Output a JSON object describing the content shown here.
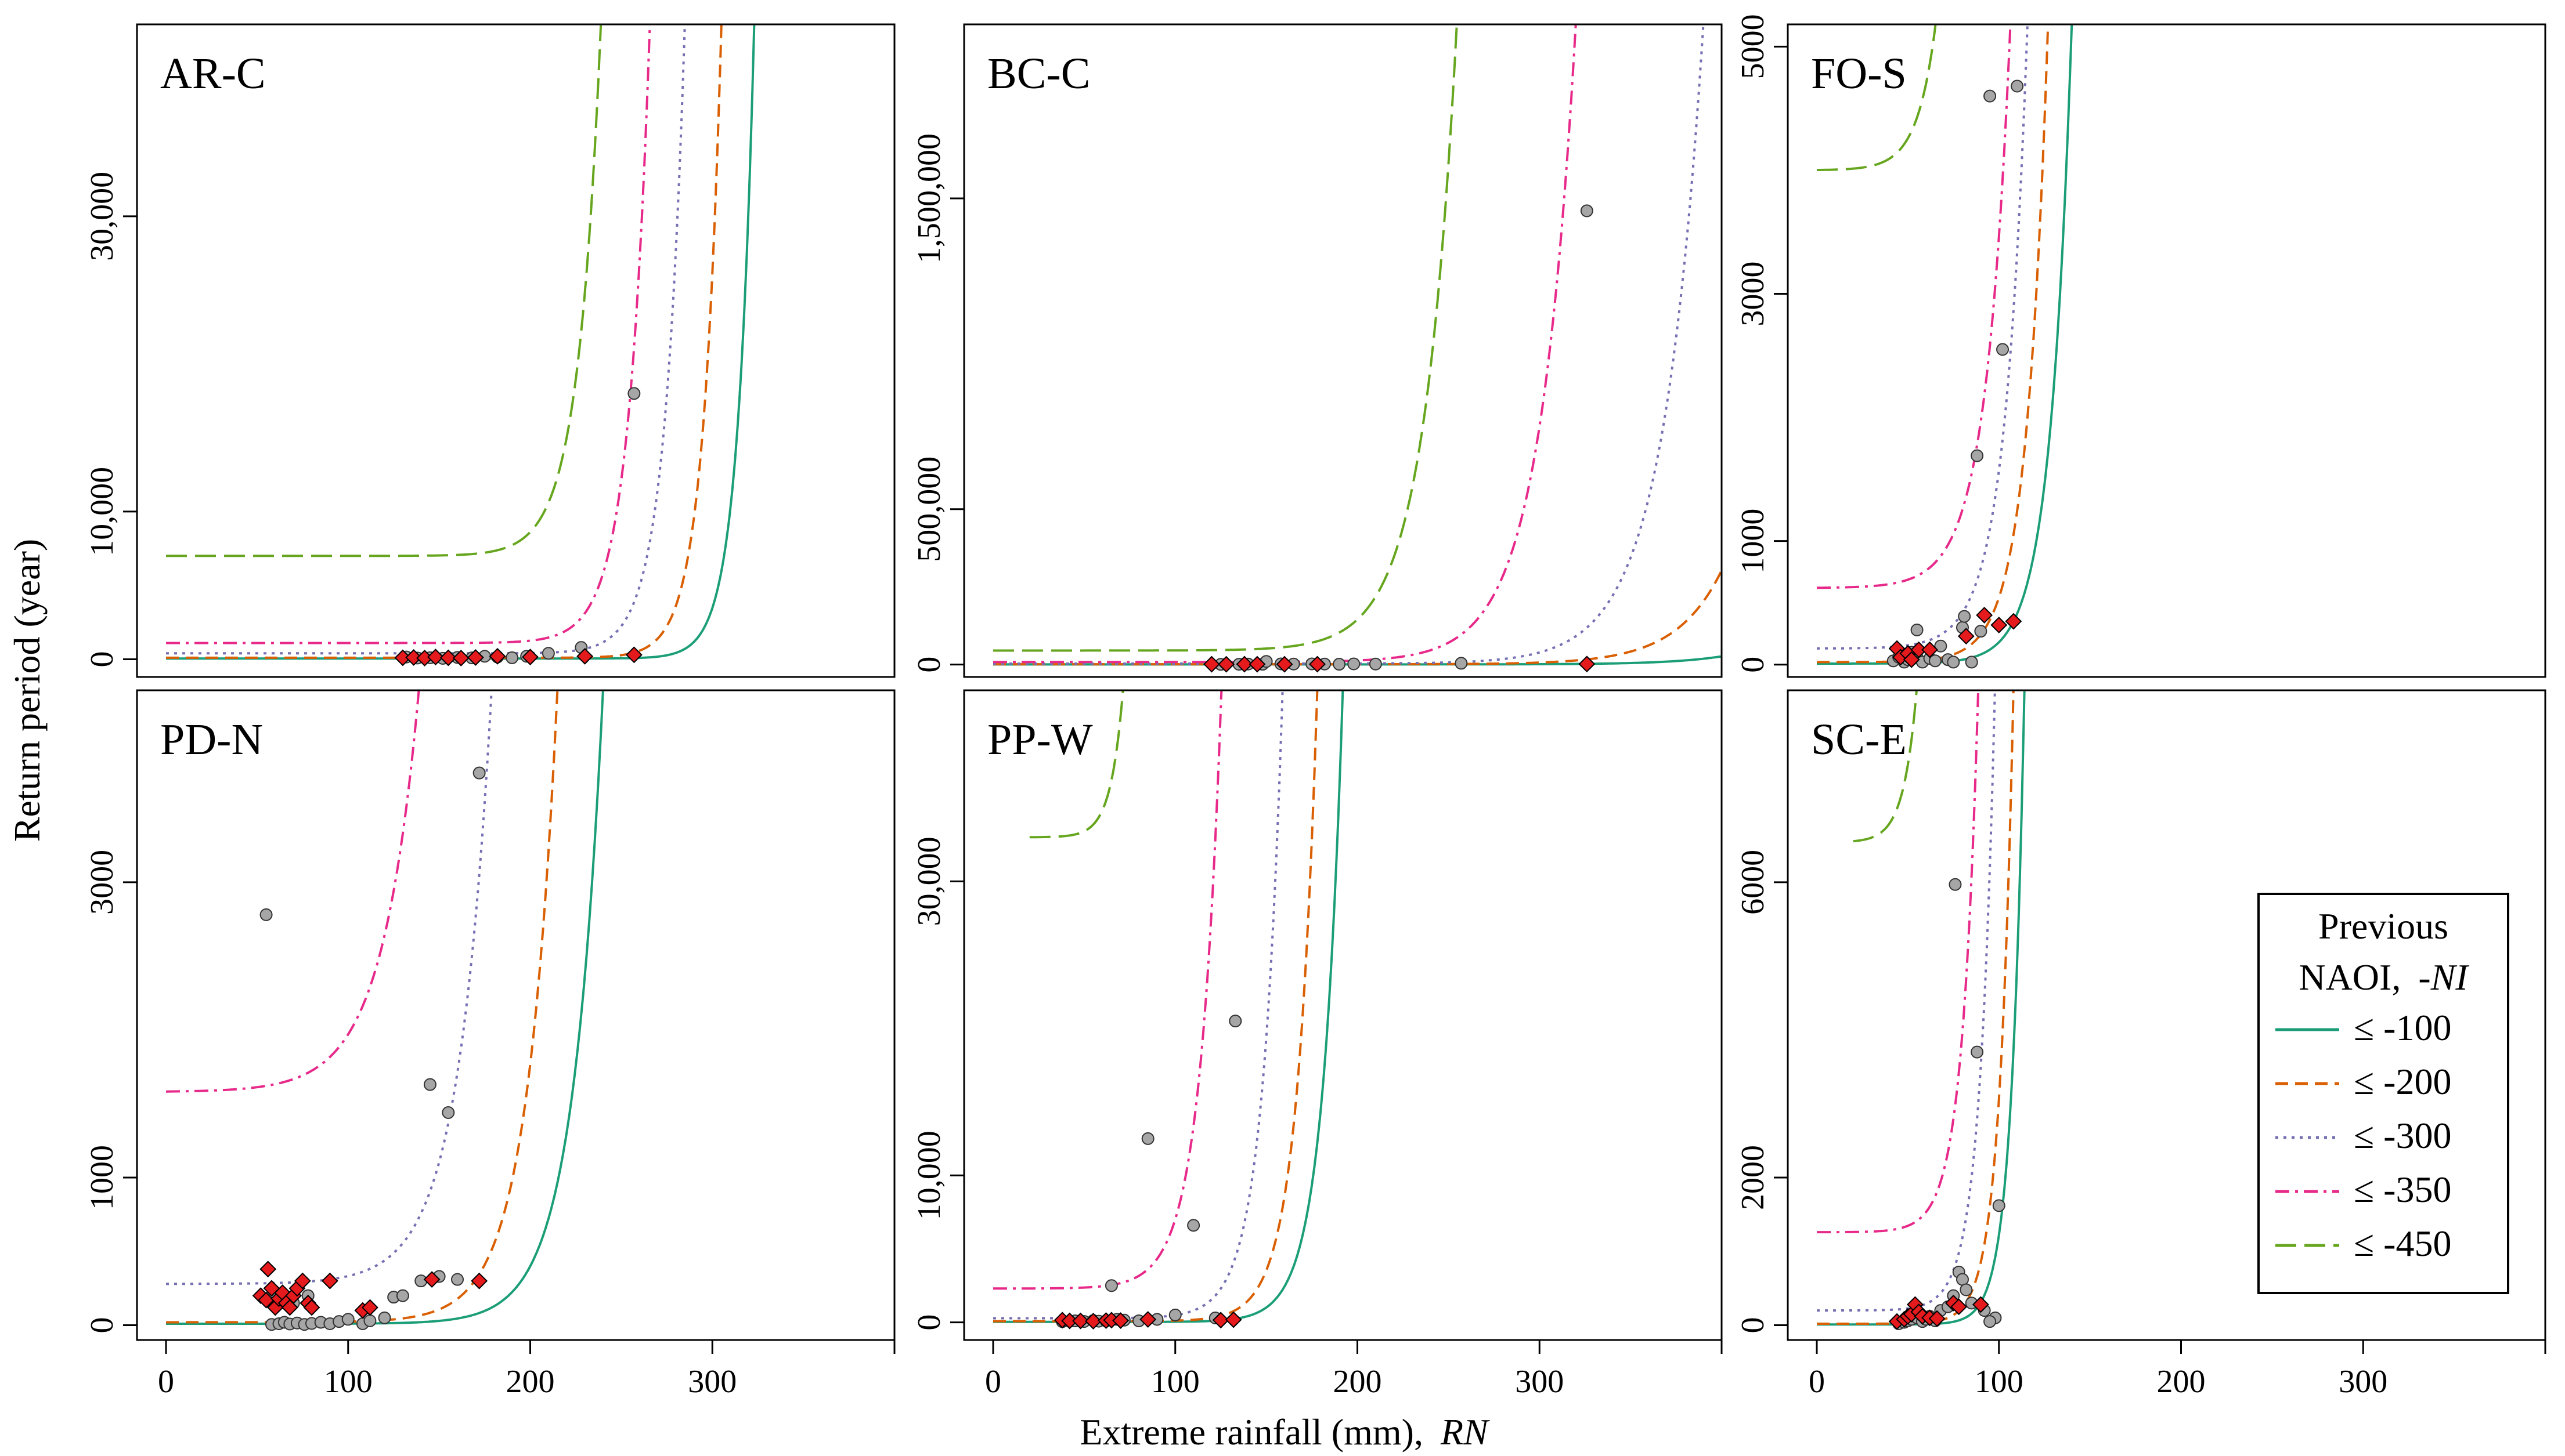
{
  "figure": {
    "xlabel": "Extreme rainfall (mm),",
    "xlabel_italic": "RN",
    "ylabel": "Return period (year)"
  },
  "colors": {
    "le_100": "#1b9e77",
    "le_200": "#d95f02",
    "le_300": "#7570b3",
    "le_350": "#e7298a",
    "le_450": "#66a61e",
    "point_gray": "#a6a6a6",
    "point_red": "#e41a1c"
  },
  "legend": {
    "title_line1": "Previous",
    "title_line2": "NAOI,",
    "title_italic": "-NI",
    "entries": [
      {
        "label": "≤ -100",
        "color": "#1b9e77",
        "dash": "solid"
      },
      {
        "label": "≤ -200",
        "color": "#d95f02",
        "dash": "dashed"
      },
      {
        "label": "≤ -300",
        "color": "#7570b3",
        "dash": "dotted"
      },
      {
        "label": "≤ -350",
        "color": "#e7298a",
        "dash": "dotdash"
      },
      {
        "label": "≤ -450",
        "color": "#66a61e",
        "dash": "longdash"
      }
    ]
  },
  "chart_data": [
    {
      "type": "line",
      "title": "AR-C",
      "xlim": [
        0,
        400
      ],
      "ylim": [
        -1200,
        43000
      ],
      "xticks": [
        0,
        100,
        200,
        300
      ],
      "xtick_labels": [
        "0",
        "100",
        "200",
        "300"
      ],
      "yticks": [
        0,
        10000,
        30000
      ],
      "ytick_labels": [
        "0",
        "10,000",
        "30,000"
      ],
      "series": [
        {
          "name": "≤ -100",
          "base": 50,
          "k": 0.11,
          "x0": 323
        },
        {
          "name": "≤ -200",
          "base": 100,
          "k": 0.1,
          "x0": 305
        },
        {
          "name": "≤ -300",
          "base": 400,
          "k": 0.09,
          "x0": 285
        },
        {
          "name": "≤ -350",
          "base": 1100,
          "k": 0.085,
          "x0": 266
        },
        {
          "name": "≤ -450",
          "base": 7000,
          "k": 0.08,
          "x0": 241
        }
      ],
      "points_gray": [
        [
          132,
          150
        ],
        [
          138,
          80
        ],
        [
          145,
          100
        ],
        [
          152,
          60
        ],
        [
          160,
          120
        ],
        [
          168,
          90
        ],
        [
          175,
          200
        ],
        [
          182,
          150
        ],
        [
          190,
          100
        ],
        [
          198,
          200
        ],
        [
          210,
          400
        ],
        [
          228,
          800
        ],
        [
          257,
          18000
        ]
      ],
      "points_red": [
        [
          130,
          100
        ],
        [
          136,
          120
        ],
        [
          142,
          80
        ],
        [
          148,
          150
        ],
        [
          155,
          100
        ],
        [
          162,
          80
        ],
        [
          170,
          120
        ],
        [
          182,
          200
        ],
        [
          200,
          150
        ],
        [
          230,
          200
        ],
        [
          257,
          300
        ]
      ]
    },
    {
      "type": "line",
      "title": "BC-C",
      "xlim": [
        0,
        400
      ],
      "ylim": [
        -40000,
        2060000
      ],
      "xticks": [
        0,
        100,
        200,
        300
      ],
      "xtick_labels": [
        "0",
        "100",
        "200",
        "300"
      ],
      "yticks": [
        0,
        500000,
        1500000
      ],
      "ytick_labels": [
        "0",
        "500,000",
        "1,500,000"
      ],
      "series": [
        {
          "name": "≤ -100",
          "base": 300,
          "k": 0.035,
          "x0": 525
        },
        {
          "name": "≤ -200",
          "base": 800,
          "k": 0.04,
          "x0": 448
        },
        {
          "name": "≤ -300",
          "base": 3000,
          "k": 0.045,
          "x0": 390
        },
        {
          "name": "≤ -350",
          "base": 8000,
          "k": 0.05,
          "x0": 320
        },
        {
          "name": "≤ -450",
          "base": 45000,
          "k": 0.055,
          "x0": 255
        }
      ],
      "points_gray": [
        [
          125,
          500
        ],
        [
          135,
          800
        ],
        [
          140,
          1500
        ],
        [
          148,
          1000
        ],
        [
          150,
          10000
        ],
        [
          158,
          2000
        ],
        [
          165,
          1500
        ],
        [
          175,
          2000
        ],
        [
          182,
          1500
        ],
        [
          190,
          1000
        ],
        [
          198,
          2000
        ],
        [
          210,
          1500
        ],
        [
          257,
          4000
        ],
        [
          326,
          1460000
        ]
      ],
      "points_red": [
        [
          120,
          1000
        ],
        [
          128,
          800
        ],
        [
          138,
          1200
        ],
        [
          145,
          1000
        ],
        [
          160,
          900
        ],
        [
          178,
          1100
        ],
        [
          326,
          1500
        ]
      ]
    },
    {
      "type": "line",
      "title": "FO-S",
      "xlim": [
        0,
        400
      ],
      "ylim": [
        -100,
        5180
      ],
      "xticks": [
        0,
        100,
        200,
        300
      ],
      "xtick_labels": [
        "0",
        "100",
        "200",
        "300"
      ],
      "yticks": [
        0,
        1000,
        3000,
        5000
      ],
      "ytick_labels": [
        "0",
        "1000",
        "3000",
        "5000"
      ],
      "series": [
        {
          "name": "≤ -100",
          "base": 8,
          "k": 0.085,
          "x0": 140
        },
        {
          "name": "≤ -200",
          "base": 20,
          "k": 0.085,
          "x0": 127
        },
        {
          "name": "≤ -300",
          "base": 130,
          "k": 0.08,
          "x0": 116
        },
        {
          "name": "≤ -350",
          "base": 620,
          "k": 0.075,
          "x0": 108
        },
        {
          "name": "≤ -450",
          "base": 4000,
          "k": 0.1,
          "x0": 80
        }
      ],
      "points_gray": [
        [
          42,
          30
        ],
        [
          45,
          60
        ],
        [
          48,
          20
        ],
        [
          50,
          40
        ],
        [
          52,
          100
        ],
        [
          55,
          60
        ],
        [
          58,
          20
        ],
        [
          62,
          50
        ],
        [
          65,
          30
        ],
        [
          68,
          150
        ],
        [
          72,
          40
        ],
        [
          75,
          20
        ],
        [
          80,
          300
        ],
        [
          85,
          20
        ],
        [
          48,
          80
        ],
        [
          55,
          280
        ],
        [
          81,
          390
        ],
        [
          90,
          270
        ],
        [
          88,
          1690
        ],
        [
          95,
          4600
        ],
        [
          102,
          2550
        ],
        [
          110,
          4680
        ]
      ],
      "points_red": [
        [
          44,
          130
        ],
        [
          46,
          60
        ],
        [
          50,
          90
        ],
        [
          52,
          40
        ],
        [
          56,
          120
        ],
        [
          62,
          120
        ],
        [
          82,
          230
        ],
        [
          92,
          400
        ],
        [
          100,
          320
        ],
        [
          108,
          350
        ]
      ]
    },
    {
      "type": "line",
      "title": "PD-N",
      "xlim": [
        0,
        400
      ],
      "ylim": [
        -100,
        4300
      ],
      "xticks": [
        0,
        100,
        200,
        300
      ],
      "xtick_labels": [
        "0",
        "100",
        "200",
        "300"
      ],
      "yticks": [
        0,
        1000,
        3000
      ],
      "ytick_labels": [
        "0",
        "1000",
        "3000"
      ],
      "series": [
        {
          "name": "≤ -100",
          "base": 10,
          "k": 0.06,
          "x0": 240
        },
        {
          "name": "≤ -200",
          "base": 20,
          "k": 0.06,
          "x0": 215
        },
        {
          "name": "≤ -300",
          "base": 280,
          "k": 0.055,
          "x0": 180
        },
        {
          "name": "≤ -350",
          "base": 1580,
          "k": 0.05,
          "x0": 148
        },
        {
          "name": "≤ -450",
          "base": 20000,
          "k": 0.05,
          "x0": 100
        }
      ],
      "points_gray": [
        [
          55,
          2780
        ],
        [
          58,
          5
        ],
        [
          62,
          10
        ],
        [
          65,
          20
        ],
        [
          68,
          8
        ],
        [
          72,
          15
        ],
        [
          76,
          5
        ],
        [
          80,
          12
        ],
        [
          85,
          20
        ],
        [
          90,
          10
        ],
        [
          95,
          25
        ],
        [
          100,
          40
        ],
        [
          108,
          10
        ],
        [
          112,
          30
        ],
        [
          120,
          50
        ],
        [
          125,
          190
        ],
        [
          130,
          200
        ],
        [
          140,
          300
        ],
        [
          145,
          1630
        ],
        [
          150,
          330
        ],
        [
          155,
          1440
        ],
        [
          160,
          310
        ],
        [
          172,
          3740
        ],
        [
          58,
          200
        ],
        [
          65,
          150
        ],
        [
          70,
          150
        ],
        [
          78,
          200
        ]
      ],
      "points_red": [
        [
          52,
          200
        ],
        [
          55,
          170
        ],
        [
          56,
          380
        ],
        [
          58,
          250
        ],
        [
          60,
          120
        ],
        [
          62,
          180
        ],
        [
          64,
          220
        ],
        [
          66,
          150
        ],
        [
          68,
          120
        ],
        [
          70,
          200
        ],
        [
          72,
          250
        ],
        [
          75,
          300
        ],
        [
          78,
          150
        ],
        [
          80,
          120
        ],
        [
          90,
          300
        ],
        [
          108,
          100
        ],
        [
          112,
          120
        ],
        [
          146,
          310
        ],
        [
          172,
          300
        ]
      ]
    },
    {
      "type": "line",
      "title": "PP-W",
      "xlim": [
        0,
        400
      ],
      "ylim": [
        -1200,
        43000
      ],
      "xticks": [
        0,
        100,
        200,
        300
      ],
      "xtick_labels": [
        "0",
        "100",
        "200",
        "300"
      ],
      "yticks": [
        0,
        10000,
        30000
      ],
      "ytick_labels": [
        "0",
        "10,000",
        "30,000"
      ],
      "series": [
        {
          "name": "≤ -100",
          "base": 30,
          "k": 0.09,
          "x0": 192
        },
        {
          "name": "≤ -200",
          "base": 80,
          "k": 0.09,
          "x0": 178
        },
        {
          "name": "≤ -300",
          "base": 280,
          "k": 0.09,
          "x0": 159
        },
        {
          "name": "≤ -350",
          "base": 2300,
          "k": 0.085,
          "x0": 126
        },
        {
          "name": "≤ -450",
          "base": 33000,
          "k": 0.15,
          "x0": 81
        }
      ],
      "points_gray": [
        [
          38,
          50
        ],
        [
          42,
          80
        ],
        [
          45,
          100
        ],
        [
          50,
          60
        ],
        [
          55,
          120
        ],
        [
          58,
          80
        ],
        [
          62,
          100
        ],
        [
          65,
          2500
        ],
        [
          68,
          200
        ],
        [
          72,
          150
        ],
        [
          80,
          100
        ],
        [
          85,
          12500
        ],
        [
          90,
          200
        ],
        [
          100,
          500
        ],
        [
          110,
          6600
        ],
        [
          122,
          300
        ],
        [
          133,
          20500
        ]
      ],
      "points_red": [
        [
          38,
          150
        ],
        [
          42,
          100
        ],
        [
          48,
          100
        ],
        [
          55,
          80
        ],
        [
          62,
          120
        ],
        [
          65,
          150
        ],
        [
          70,
          120
        ],
        [
          85,
          200
        ],
        [
          125,
          150
        ],
        [
          132,
          180
        ]
      ]
    },
    {
      "type": "line",
      "title": "SC-E",
      "xlim": [
        0,
        400
      ],
      "ylim": [
        -200,
        8600
      ],
      "xticks": [
        0,
        100,
        200,
        300
      ],
      "xtick_labels": [
        "0",
        "100",
        "200",
        "300"
      ],
      "yticks": [
        0,
        2000,
        6000
      ],
      "ytick_labels": [
        "0",
        "2000",
        "6000"
      ],
      "series": [
        {
          "name": "≤ -100",
          "base": 10,
          "k": 0.14,
          "x0": 114
        },
        {
          "name": "≤ -200",
          "base": 20,
          "k": 0.13,
          "x0": 108
        },
        {
          "name": "≤ -300",
          "base": 200,
          "k": 0.12,
          "x0": 98
        },
        {
          "name": "≤ -350",
          "base": 1260,
          "k": 0.115,
          "x0": 90
        },
        {
          "name": "≤ -450",
          "base": 6540,
          "k": 0.14,
          "x0": 65
        }
      ],
      "points_gray": [
        [
          45,
          20
        ],
        [
          48,
          40
        ],
        [
          50,
          60
        ],
        [
          52,
          80
        ],
        [
          55,
          100
        ],
        [
          58,
          50
        ],
        [
          60,
          80
        ],
        [
          62,
          120
        ],
        [
          65,
          60
        ],
        [
          68,
          200
        ],
        [
          72,
          250
        ],
        [
          75,
          400
        ],
        [
          76,
          5970
        ],
        [
          78,
          720
        ],
        [
          80,
          620
        ],
        [
          82,
          480
        ],
        [
          85,
          300
        ],
        [
          88,
          3700
        ],
        [
          92,
          200
        ],
        [
          98,
          100
        ],
        [
          100,
          1620
        ],
        [
          95,
          50
        ]
      ],
      "points_red": [
        [
          44,
          50
        ],
        [
          48,
          80
        ],
        [
          50,
          120
        ],
        [
          52,
          150
        ],
        [
          54,
          280
        ],
        [
          56,
          180
        ],
        [
          58,
          120
        ],
        [
          62,
          100
        ],
        [
          66,
          90
        ],
        [
          75,
          300
        ],
        [
          78,
          250
        ],
        [
          90,
          280
        ]
      ]
    }
  ]
}
